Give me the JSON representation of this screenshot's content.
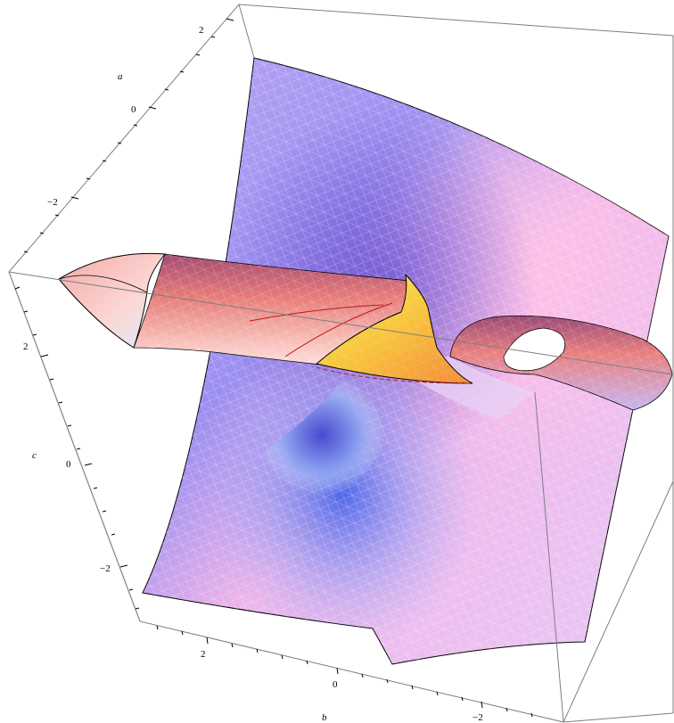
{
  "axes": {
    "a": {
      "label": "a",
      "ticks": [
        "2",
        "0",
        "−2"
      ]
    },
    "b": {
      "label": "b",
      "ticks": [
        "2",
        "0",
        "−2"
      ]
    },
    "c": {
      "label": "c",
      "ticks": [
        "2",
        "0",
        "−2"
      ]
    }
  },
  "colors": {
    "box_edge": "#7f7f7f",
    "sheet_violet": "#b7a6f7",
    "sheet_pink": "#f4b3ea",
    "sheet_blue": "#6f7ff0",
    "tube_red": "#e8787a",
    "tube_light": "#fbe4ea",
    "core_yellow": "#f7f050",
    "core_orange": "#f9a23e",
    "curve_red": "#c0151a"
  }
}
